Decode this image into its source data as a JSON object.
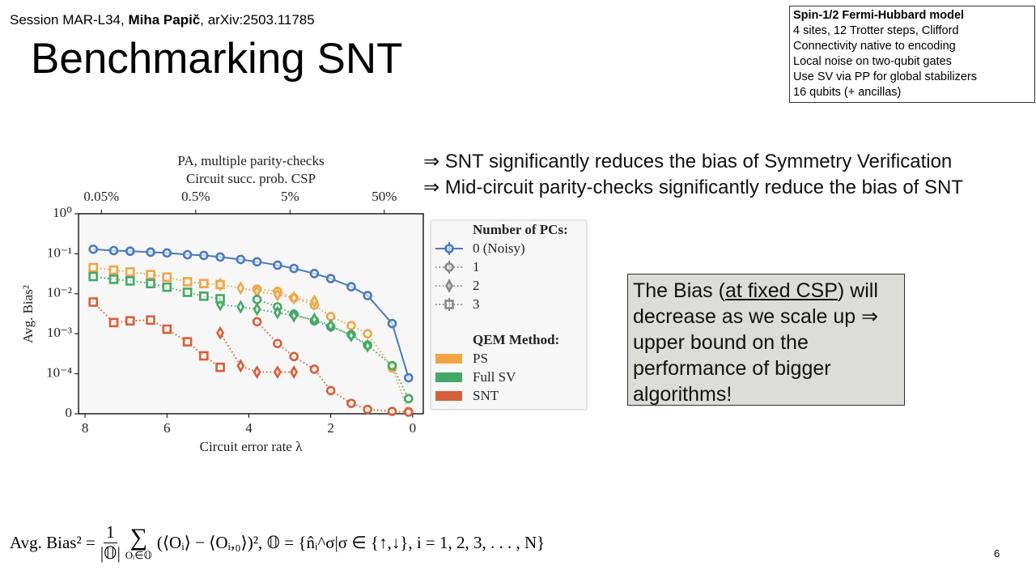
{
  "header": {
    "session": "Session MAR-L34, ",
    "author": "Miha Papič",
    "ref": ", arXiv:2503.11785"
  },
  "title": "Benchmarking SNT",
  "info_box": [
    "Spin-1/2 Fermi-Hubbard model",
    "4 sites, 12 Trotter steps, Clifford",
    "Connectivity native to encoding",
    "Local noise on two-qubit gates",
    "Use SV via PP for global stabilizers",
    "16 qubits (+ ancillas)"
  ],
  "bullets": [
    "⇒ SNT significantly reduces the bias of Symmetry Verification",
    "⇒ Mid-circuit parity-checks significantly reduce the bias of SNT"
  ],
  "callout": {
    "before": "The Bias (",
    "underlined": "at fixed CSP",
    "after": ") will decrease as we scale up ⇒ upper bound on the performance of bigger algorithms!"
  },
  "formula": {
    "lhs": "Avg. Bias² =",
    "numerator": "1",
    "denominator": "|𝕆|",
    "sum": "∑",
    "sum_index": "Oᵢ∈𝕆",
    "rhs": "(⟨Oᵢ⟩ − ⟨Oᵢ,₀⟩)², 𝕆 = {n̂ᵢ^σ|σ ∈ {↑,↓}, i = 1, 2, 3, . . . , N}"
  },
  "page_number": "6",
  "chart_data": {
    "type": "line",
    "title": "PA, multiple parity-checks",
    "x2_label": "Circuit succ. prob. CSP",
    "x_label": "Circuit error rate λ",
    "y_label": "Avg. Bias²",
    "yscale": "symlog",
    "linthresh": 0.0001,
    "xlim": [
      8.16,
      -0.26
    ],
    "xticks": [
      8,
      6,
      4,
      2,
      0
    ],
    "x2ticks": [
      {
        "value": 0.05,
        "label": "0.05%"
      },
      {
        "value": 0.5,
        "label": "0.5%"
      },
      {
        "value": 5,
        "label": "5%"
      },
      {
        "value": 50,
        "label": "50%"
      }
    ],
    "ylim": [
      0,
      1
    ],
    "yticks": [
      0,
      {
        "value": 0.0001,
        "label": "10⁻⁴"
      },
      {
        "value": 0.001,
        "label": "10⁻³"
      },
      {
        "value": 0.01,
        "label": "10⁻²"
      },
      {
        "value": 0.1,
        "label": "10⁻¹"
      },
      {
        "value": 1,
        "label": "10⁰"
      }
    ],
    "x": [
      7.8,
      7.3,
      6.9,
      6.4,
      6.0,
      5.5,
      5.1,
      4.7,
      4.2,
      3.8,
      3.3,
      2.9,
      2.4,
      2.0,
      1.5,
      1.1,
      0.5,
      0.1
    ],
    "series": [
      {
        "name": "0 (Noisy)",
        "color": "#4a78c2",
        "marker": "circle",
        "values": [
          0.13,
          0.12,
          0.116,
          0.11,
          0.105,
          0.095,
          0.091,
          0.083,
          0.072,
          0.063,
          0.052,
          0.043,
          0.032,
          0.024,
          0.015,
          0.009,
          0.0018,
          9e-05
        ]
      }
    ],
    "methods": [
      {
        "name": "PS",
        "color": "#f0a545",
        "series": [
          {
            "marker": "circle",
            "values": [
              null,
              null,
              null,
              null,
              null,
              null,
              null,
              null,
              null,
              0.0131,
              0.0115,
              0.0079,
              0.0052,
              0.0027,
              0.0016,
              0.001,
              0.00014,
              6e-06
            ]
          },
          {
            "marker": "diamond",
            "values": [
              null,
              null,
              null,
              null,
              null,
              null,
              null,
              0.017,
              0.0139,
              0.0115,
              0.0095,
              0.0079,
              0.0065,
              null,
              null,
              null,
              null,
              null
            ]
          },
          {
            "marker": "square",
            "values": [
              0.045,
              0.039,
              0.035,
              0.03,
              0.026,
              0.02,
              0.018,
              0.017,
              null,
              null,
              null,
              null,
              null,
              null,
              null,
              null,
              null,
              null
            ]
          }
        ]
      },
      {
        "name": "Full SV",
        "color": "#46a866",
        "series": [
          {
            "marker": "circle",
            "values": [
              null,
              null,
              null,
              null,
              null,
              null,
              null,
              null,
              null,
              0.0072,
              0.0047,
              0.0031,
              0.0021,
              0.0015,
              0.00095,
              0.00052,
              0.00016,
              3.8e-05
            ]
          },
          {
            "marker": "diamond",
            "values": [
              null,
              null,
              null,
              null,
              null,
              null,
              null,
              0.0054,
              0.0047,
              0.0041,
              0.0034,
              0.0028,
              0.0023,
              0.0016,
              0.0009,
              0.0005,
              null,
              null
            ]
          },
          {
            "marker": "square",
            "values": [
              0.027,
              0.023,
              0.021,
              0.018,
              0.0146,
              0.0109,
              0.0087,
              0.0075,
              null,
              null,
              null,
              null,
              null,
              null,
              null,
              null,
              null,
              null
            ]
          }
        ]
      },
      {
        "name": "SNT",
        "color": "#d5603a",
        "series": [
          {
            "marker": "circle",
            "values": [
              null,
              null,
              null,
              null,
              null,
              null,
              null,
              null,
              null,
              0.002,
              0.00057,
              0.00027,
              0.00013,
              5.8e-05,
              2.6e-05,
              1.1e-05,
              6e-06,
              4e-06
            ]
          },
          {
            "marker": "diamond",
            "values": [
              null,
              null,
              null,
              null,
              null,
              null,
              null,
              0.00105,
              0.000158,
              0.00011,
              0.00011,
              0.00011,
              null,
              null,
              null,
              null,
              null,
              null
            ]
          },
          {
            "marker": "square",
            "values": [
              0.0062,
              0.0019,
              0.0021,
              0.0022,
              0.0013,
              0.00063,
              0.00028,
              0.000145,
              null,
              null,
              null,
              null,
              null,
              null,
              null,
              null,
              null,
              null
            ]
          }
        ]
      }
    ],
    "legend": {
      "pcs_title": "Number of PCs:",
      "pcs": [
        {
          "label": "1",
          "marker": "circle"
        },
        {
          "label": "2",
          "marker": "diamond"
        },
        {
          "label": "3",
          "marker": "square"
        }
      ],
      "methods_title": "QEM Method:"
    }
  }
}
